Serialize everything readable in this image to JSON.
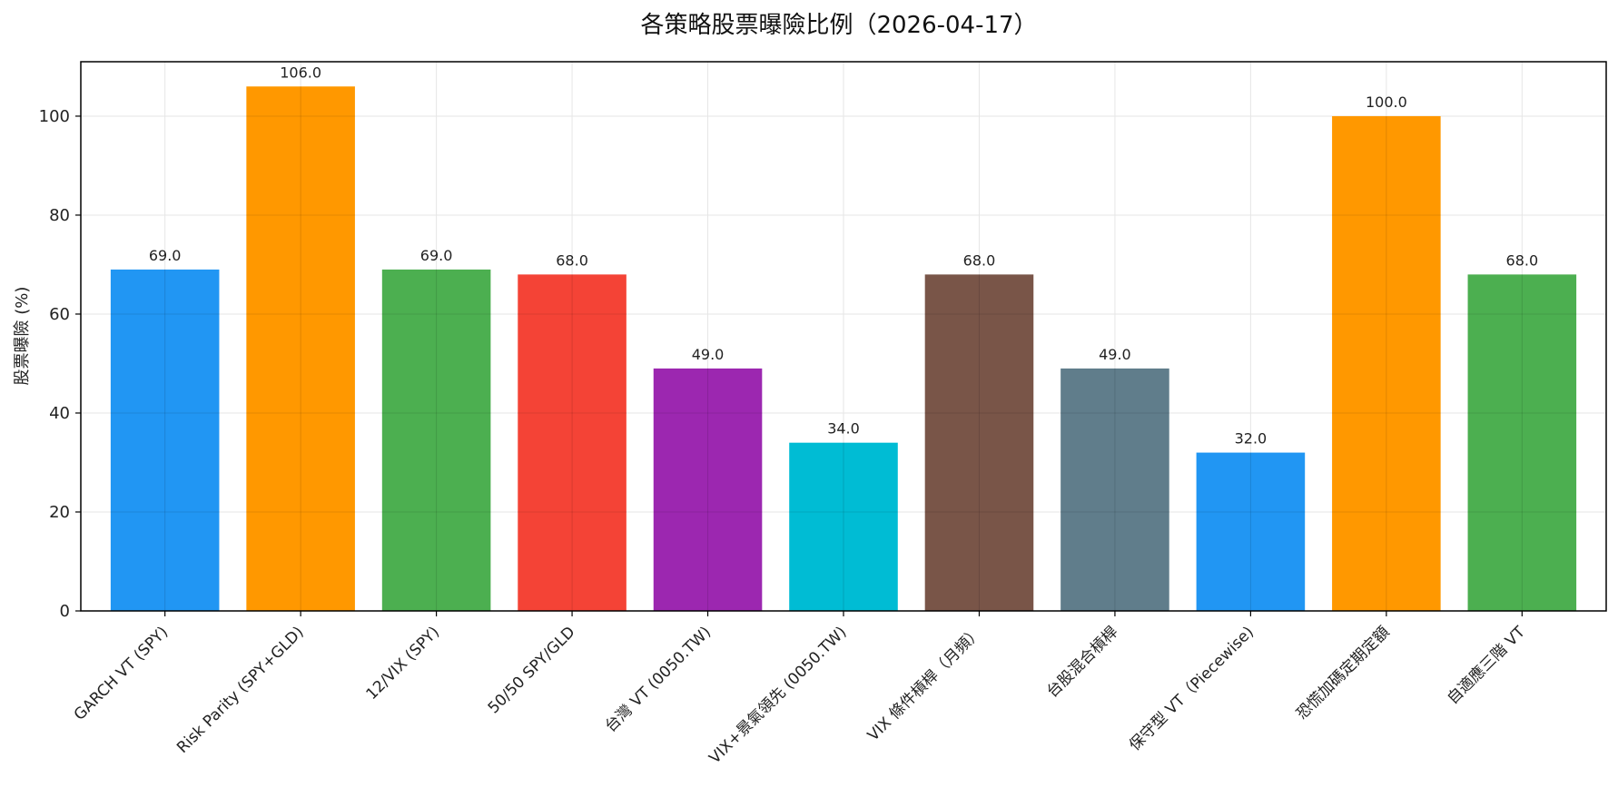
{
  "chart_data": {
    "type": "bar",
    "title": "各策略股票曝險比例（2026-04-17）",
    "xlabel": "",
    "ylabel": "股票曝險 (%)",
    "ylim": [
      0,
      111
    ],
    "yticks": [
      0,
      20,
      40,
      60,
      80,
      100
    ],
    "grid": true,
    "categories": [
      "GARCH VT (SPY)",
      "Risk Parity (SPY+GLD)",
      "12/VIX (SPY)",
      "50/50 SPY/GLD",
      "台灣 VT (0050.TW)",
      "VIX+景氣領先 (0050.TW)",
      "VIX 條件槓桿（月頻）",
      "台股混合槓桿",
      "保守型 VT（Piecewise)",
      "恐慌加碼定期定額",
      "自適應三階 VT"
    ],
    "values": [
      69.0,
      106.0,
      69.0,
      68.0,
      49.0,
      34.0,
      68.0,
      49.0,
      32.0,
      100.0,
      68.0
    ],
    "data_labels": [
      "69.0",
      "106.0",
      "69.0",
      "68.0",
      "49.0",
      "34.0",
      "68.0",
      "49.0",
      "32.0",
      "100.0",
      "68.0"
    ],
    "colors": [
      "#2196F3",
      "#FF9800",
      "#4CAF50",
      "#F44336",
      "#9C27B0",
      "#00BCD4",
      "#795548",
      "#607D8B",
      "#2196F3",
      "#FF9800",
      "#4CAF50"
    ]
  }
}
